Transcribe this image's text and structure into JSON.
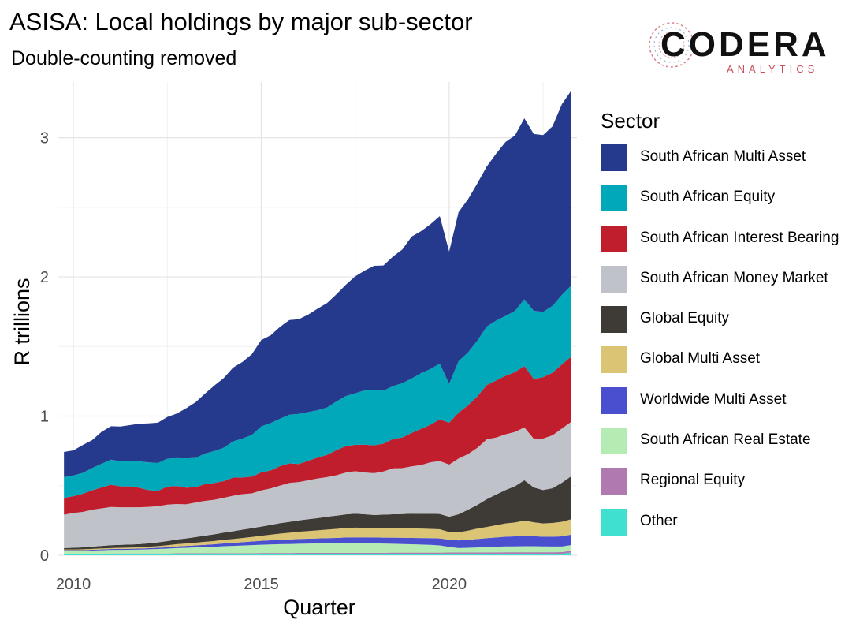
{
  "title": "ASISA: Local holdings by major sub-sector",
  "subtitle": "Double-counting removed",
  "logo": {
    "name": "CODERA",
    "tagline": "ANALYTICS"
  },
  "colors": {
    "South African Multi Asset": "#263a8d",
    "South African Equity": "#01a8b9",
    "South African Interest Bearing": "#c11e2d",
    "South African Money Market": "#bfc2c8",
    "Global Equity": "#3e3b36",
    "Global Multi Asset": "#dbc473",
    "Worldwide Multi Asset": "#4a4fcf",
    "South African Real Estate": "#b4ecb3",
    "Regional Equity": "#b07ab0",
    "Other": "#3fe0cf"
  },
  "chart_data": {
    "type": "area",
    "stacked": true,
    "title": "ASISA: Local holdings by major sub-sector",
    "subtitle": "Double-counting removed",
    "xlabel": "Quarter",
    "ylabel": "R trillions",
    "xlim": [
      2009.6,
      2023.4
    ],
    "ylim": [
      0,
      3.4
    ],
    "xticks": [
      2010,
      2015,
      2020
    ],
    "yticks": [
      0,
      1,
      2,
      3
    ],
    "grid": true,
    "legend_title": "Sector",
    "legend_position": "right",
    "x": [
      2009.75,
      2010.0,
      2010.25,
      2010.5,
      2010.75,
      2011.0,
      2011.25,
      2011.5,
      2011.75,
      2012.0,
      2012.25,
      2012.5,
      2012.75,
      2013.0,
      2013.25,
      2013.5,
      2013.75,
      2014.0,
      2014.25,
      2014.5,
      2014.75,
      2015.0,
      2015.25,
      2015.5,
      2015.75,
      2016.0,
      2016.25,
      2016.5,
      2016.75,
      2017.0,
      2017.25,
      2017.5,
      2017.75,
      2018.0,
      2018.25,
      2018.5,
      2018.75,
      2019.0,
      2019.25,
      2019.5,
      2019.75,
      2020.0,
      2020.25,
      2020.5,
      2020.75,
      2021.0,
      2021.25,
      2021.5,
      2021.75,
      2022.0,
      2022.25,
      2022.5,
      2022.75,
      2023.0,
      2023.25
    ],
    "series": [
      {
        "name": "Other",
        "values": [
          0.01,
          0.01,
          0.01,
          0.01,
          0.01,
          0.01,
          0.01,
          0.01,
          0.01,
          0.01,
          0.01,
          0.01,
          0.01,
          0.01,
          0.01,
          0.01,
          0.01,
          0.01,
          0.01,
          0.01,
          0.01,
          0.01,
          0.01,
          0.01,
          0.01,
          0.01,
          0.01,
          0.01,
          0.01,
          0.01,
          0.01,
          0.01,
          0.01,
          0.01,
          0.01,
          0.01,
          0.01,
          0.01,
          0.01,
          0.01,
          0.01,
          0.01,
          0.01,
          0.01,
          0.01,
          0.01,
          0.01,
          0.01,
          0.01,
          0.01,
          0.01,
          0.01,
          0.01,
          0.01,
          0.02
        ]
      },
      {
        "name": "Regional Equity",
        "values": [
          0.002,
          0.002,
          0.002,
          0.002,
          0.002,
          0.003,
          0.003,
          0.003,
          0.003,
          0.003,
          0.003,
          0.003,
          0.004,
          0.004,
          0.004,
          0.004,
          0.004,
          0.005,
          0.005,
          0.005,
          0.005,
          0.006,
          0.006,
          0.006,
          0.006,
          0.007,
          0.007,
          0.007,
          0.007,
          0.007,
          0.008,
          0.008,
          0.008,
          0.008,
          0.008,
          0.009,
          0.009,
          0.009,
          0.009,
          0.009,
          0.009,
          0.01,
          0.01,
          0.01,
          0.01,
          0.011,
          0.011,
          0.012,
          0.012,
          0.012,
          0.012,
          0.012,
          0.012,
          0.013,
          0.014
        ]
      },
      {
        "name": "South African Real Estate",
        "values": [
          0.02,
          0.02,
          0.02,
          0.022,
          0.024,
          0.026,
          0.026,
          0.027,
          0.028,
          0.03,
          0.032,
          0.035,
          0.038,
          0.04,
          0.043,
          0.045,
          0.047,
          0.05,
          0.052,
          0.055,
          0.058,
          0.06,
          0.062,
          0.064,
          0.065,
          0.066,
          0.067,
          0.068,
          0.069,
          0.07,
          0.071,
          0.071,
          0.07,
          0.068,
          0.066,
          0.064,
          0.062,
          0.06,
          0.058,
          0.056,
          0.052,
          0.04,
          0.032,
          0.034,
          0.036,
          0.038,
          0.04,
          0.042,
          0.042,
          0.043,
          0.043,
          0.042,
          0.041,
          0.04,
          0.04
        ]
      },
      {
        "name": "Worldwide Multi Asset",
        "values": [
          0.005,
          0.005,
          0.005,
          0.006,
          0.006,
          0.006,
          0.007,
          0.007,
          0.007,
          0.008,
          0.009,
          0.01,
          0.012,
          0.013,
          0.014,
          0.016,
          0.018,
          0.02,
          0.022,
          0.024,
          0.026,
          0.028,
          0.03,
          0.032,
          0.033,
          0.034,
          0.035,
          0.036,
          0.037,
          0.038,
          0.039,
          0.04,
          0.041,
          0.042,
          0.043,
          0.044,
          0.045,
          0.046,
          0.047,
          0.048,
          0.05,
          0.052,
          0.055,
          0.058,
          0.061,
          0.064,
          0.067,
          0.07,
          0.072,
          0.074,
          0.072,
          0.07,
          0.071,
          0.073,
          0.075
        ]
      },
      {
        "name": "Global Multi Asset",
        "values": [
          0.005,
          0.005,
          0.006,
          0.006,
          0.007,
          0.007,
          0.008,
          0.008,
          0.009,
          0.01,
          0.012,
          0.014,
          0.016,
          0.018,
          0.02,
          0.022,
          0.024,
          0.026,
          0.028,
          0.03,
          0.033,
          0.036,
          0.04,
          0.044,
          0.048,
          0.052,
          0.055,
          0.058,
          0.062,
          0.065,
          0.068,
          0.07,
          0.068,
          0.066,
          0.067,
          0.068,
          0.068,
          0.07,
          0.068,
          0.067,
          0.066,
          0.055,
          0.058,
          0.065,
          0.075,
          0.08,
          0.088,
          0.095,
          0.1,
          0.11,
          0.1,
          0.095,
          0.098,
          0.105,
          0.11
        ]
      },
      {
        "name": "Global Equity",
        "values": [
          0.01,
          0.012,
          0.014,
          0.016,
          0.018,
          0.02,
          0.021,
          0.022,
          0.023,
          0.025,
          0.027,
          0.03,
          0.033,
          0.036,
          0.04,
          0.044,
          0.048,
          0.052,
          0.056,
          0.06,
          0.063,
          0.066,
          0.07,
          0.075,
          0.078,
          0.082,
          0.085,
          0.088,
          0.092,
          0.095,
          0.098,
          0.1,
          0.098,
          0.096,
          0.098,
          0.1,
          0.102,
          0.104,
          0.106,
          0.108,
          0.11,
          0.11,
          0.13,
          0.15,
          0.17,
          0.2,
          0.22,
          0.24,
          0.26,
          0.29,
          0.25,
          0.24,
          0.25,
          0.28,
          0.31
        ]
      },
      {
        "name": "South African Money Market",
        "values": [
          0.24,
          0.25,
          0.255,
          0.265,
          0.27,
          0.275,
          0.27,
          0.268,
          0.265,
          0.262,
          0.26,
          0.262,
          0.255,
          0.245,
          0.248,
          0.25,
          0.248,
          0.25,
          0.255,
          0.255,
          0.25,
          0.26,
          0.262,
          0.27,
          0.28,
          0.275,
          0.28,
          0.285,
          0.285,
          0.29,
          0.3,
          0.305,
          0.3,
          0.3,
          0.31,
          0.33,
          0.33,
          0.34,
          0.35,
          0.37,
          0.38,
          0.375,
          0.4,
          0.4,
          0.41,
          0.43,
          0.41,
          0.4,
          0.39,
          0.38,
          0.35,
          0.37,
          0.38,
          0.39,
          0.39
        ]
      },
      {
        "name": "South African Interest Bearing",
        "values": [
          0.12,
          0.12,
          0.13,
          0.14,
          0.15,
          0.16,
          0.15,
          0.15,
          0.14,
          0.12,
          0.11,
          0.13,
          0.13,
          0.12,
          0.11,
          0.12,
          0.12,
          0.12,
          0.13,
          0.12,
          0.12,
          0.13,
          0.13,
          0.14,
          0.14,
          0.13,
          0.14,
          0.15,
          0.16,
          0.18,
          0.19,
          0.19,
          0.2,
          0.2,
          0.2,
          0.21,
          0.22,
          0.24,
          0.26,
          0.27,
          0.3,
          0.3,
          0.33,
          0.35,
          0.37,
          0.39,
          0.41,
          0.42,
          0.43,
          0.44,
          0.43,
          0.44,
          0.45,
          0.46,
          0.47
        ]
      },
      {
        "name": "South African Equity",
        "values": [
          0.15,
          0.15,
          0.15,
          0.16,
          0.17,
          0.18,
          0.18,
          0.18,
          0.19,
          0.2,
          0.2,
          0.2,
          0.2,
          0.21,
          0.21,
          0.22,
          0.23,
          0.24,
          0.26,
          0.28,
          0.3,
          0.33,
          0.34,
          0.34,
          0.35,
          0.36,
          0.35,
          0.34,
          0.34,
          0.35,
          0.36,
          0.37,
          0.39,
          0.4,
          0.38,
          0.38,
          0.39,
          0.39,
          0.4,
          0.4,
          0.4,
          0.28,
          0.37,
          0.38,
          0.4,
          0.42,
          0.43,
          0.43,
          0.44,
          0.48,
          0.49,
          0.47,
          0.48,
          0.5,
          0.51
        ]
      },
      {
        "name": "South African Multi Asset",
        "values": [
          0.18,
          0.18,
          0.2,
          0.2,
          0.23,
          0.24,
          0.25,
          0.26,
          0.27,
          0.28,
          0.29,
          0.3,
          0.32,
          0.36,
          0.4,
          0.43,
          0.47,
          0.5,
          0.53,
          0.55,
          0.58,
          0.62,
          0.63,
          0.66,
          0.68,
          0.68,
          0.7,
          0.73,
          0.75,
          0.77,
          0.8,
          0.84,
          0.86,
          0.89,
          0.9,
          0.93,
          0.96,
          1.02,
          1.02,
          1.04,
          1.06,
          0.95,
          1.07,
          1.1,
          1.13,
          1.15,
          1.2,
          1.25,
          1.26,
          1.3,
          1.27,
          1.27,
          1.29,
          1.37,
          1.4
        ]
      }
    ]
  }
}
